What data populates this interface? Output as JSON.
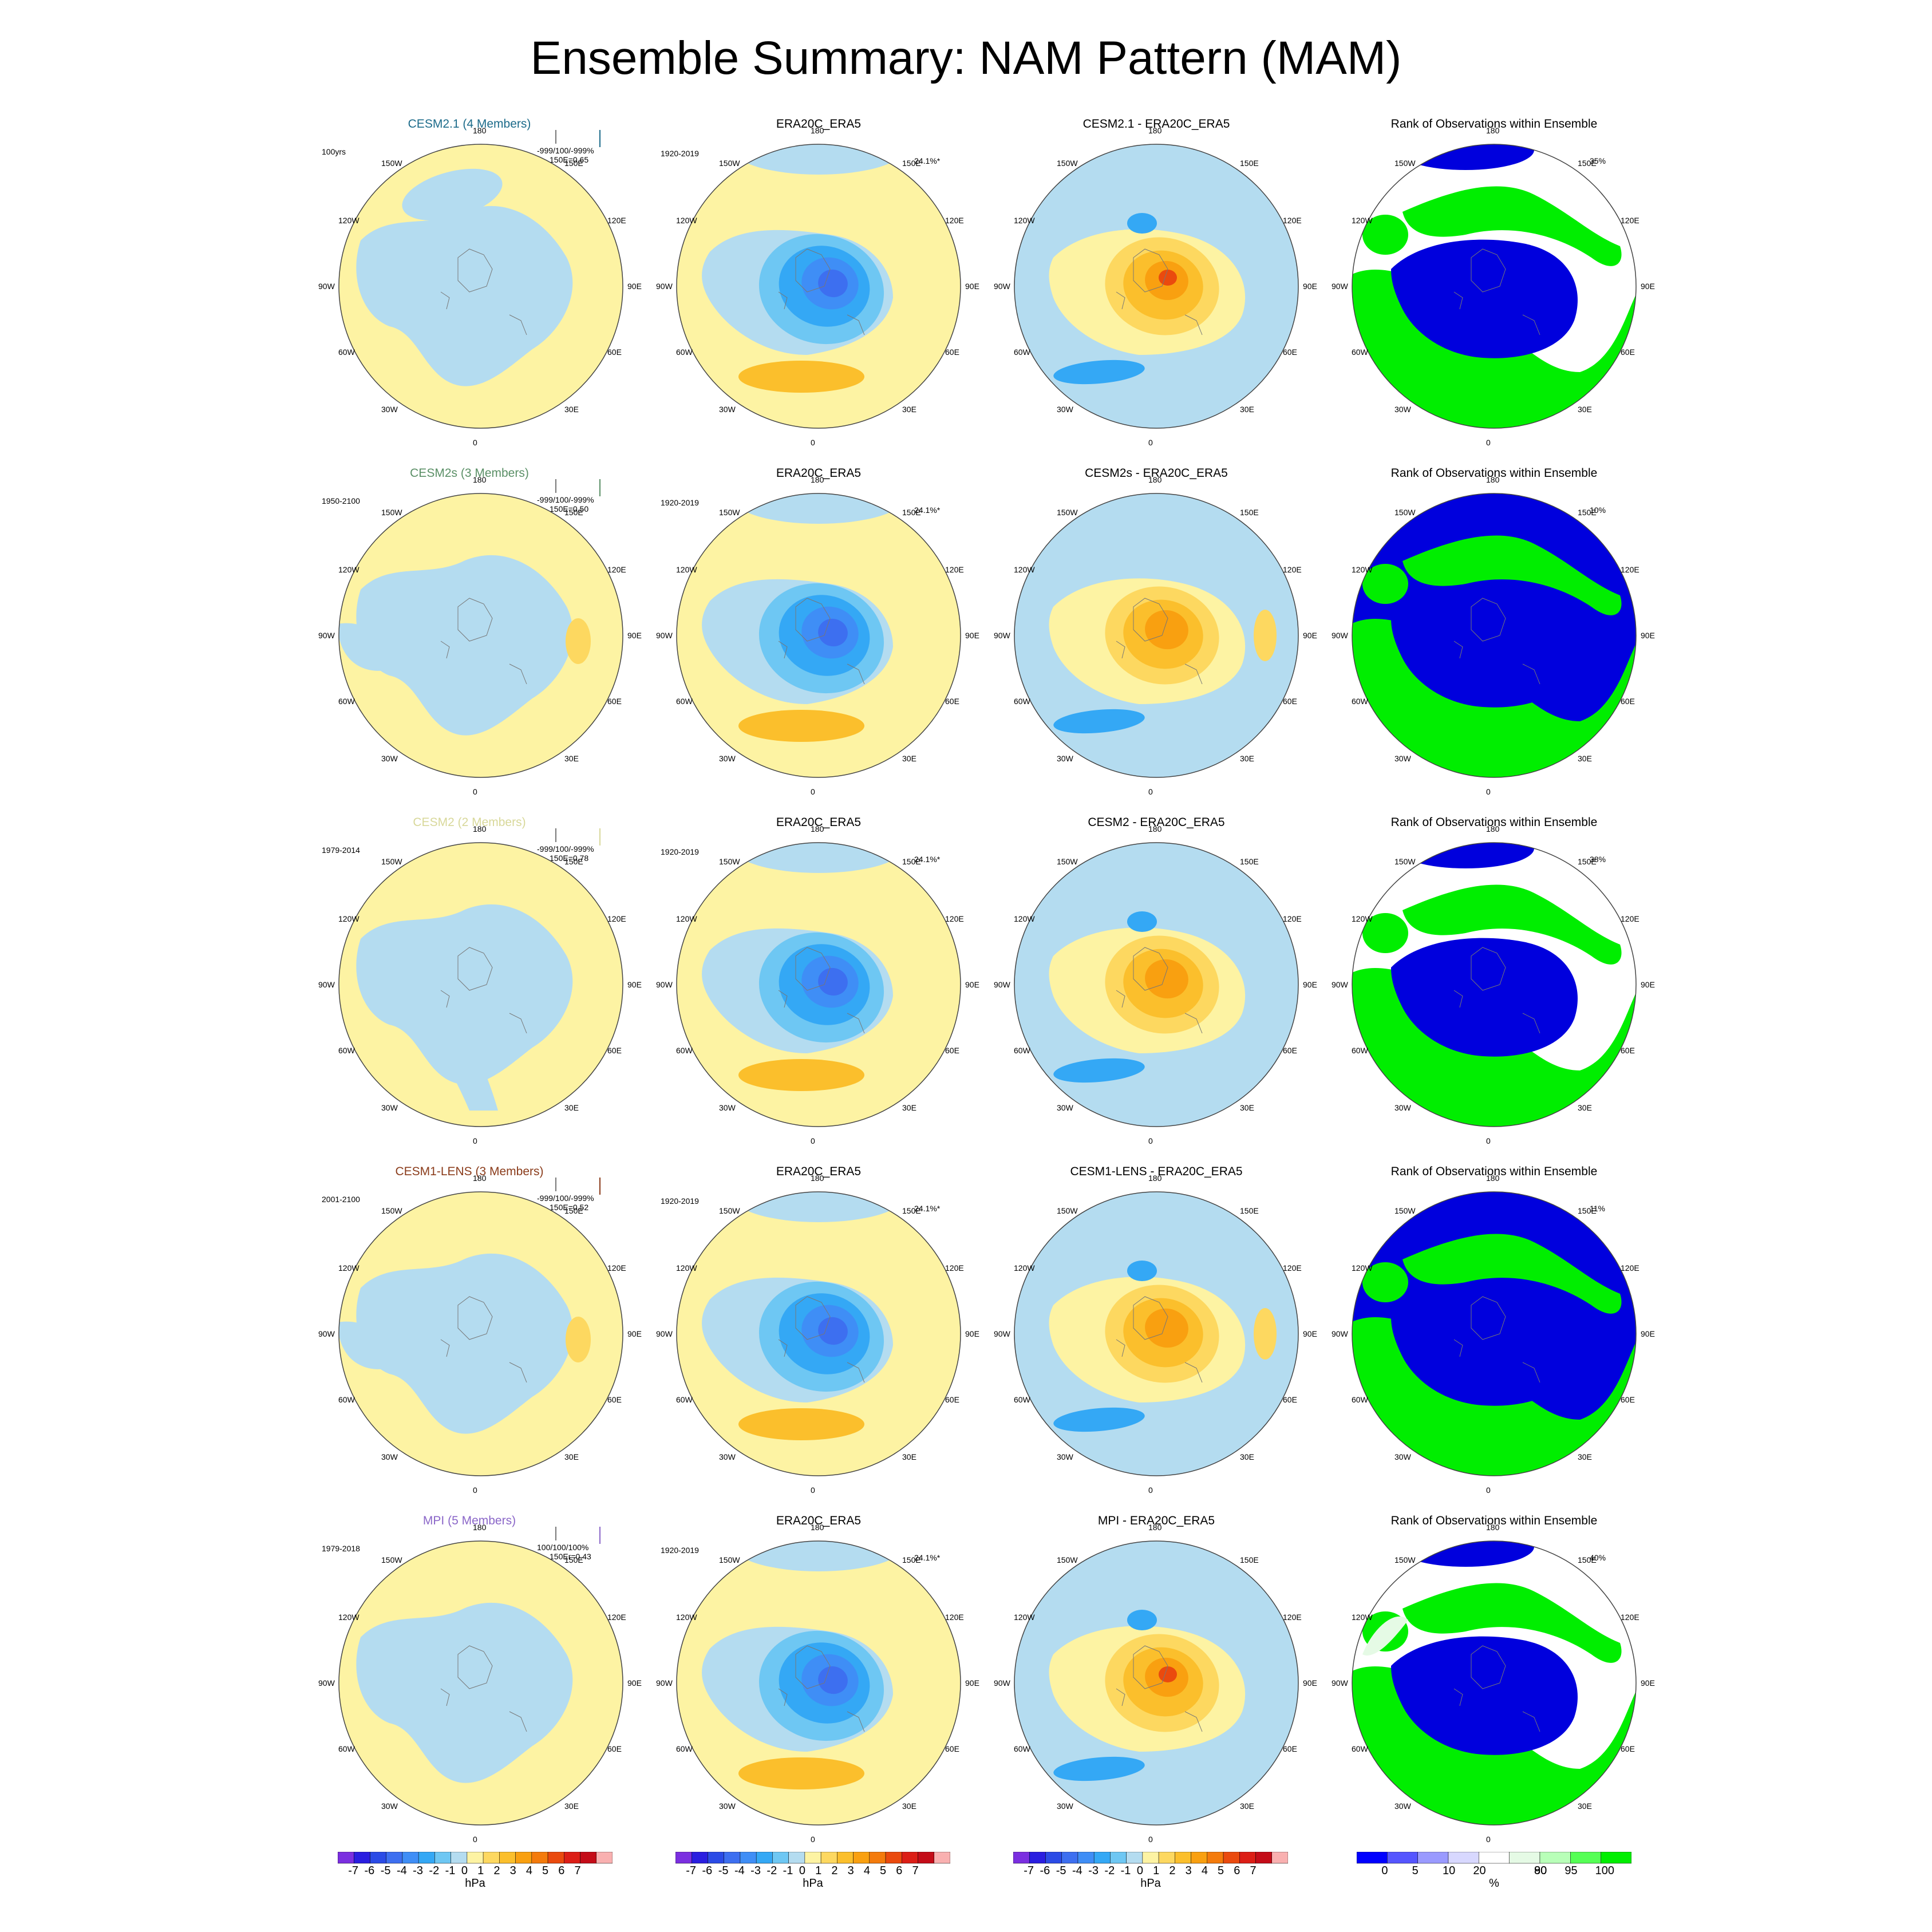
{
  "title": "Ensemble Summary: NAM Pattern (MAM)",
  "longitude_labels": [
    "180",
    "150E",
    "120E",
    "90E",
    "60E",
    "30E",
    "0",
    "30W",
    "60W",
    "90W",
    "120W",
    "150W"
  ],
  "observation_period": "1920-2019",
  "observation_title": "ERA20C_ERA5",
  "observation_variance": "24.1%*",
  "rank_title": "Rank of Observations within Ensemble",
  "rows": [
    {
      "model": "CESM2.1 (4 Members)",
      "model_color": "#1c6b8a",
      "period": "100yrs",
      "stats1": "-999/100/-999%",
      "stats2": "150E=0.65",
      "bar_color": "#1c6b8a",
      "diff_title": "CESM2.1 - ERA20C_ERA5",
      "rank_pct": "35%"
    },
    {
      "model": "CESM2s (3 Members)",
      "model_color": "#5a8f66",
      "period": "1950-2100",
      "stats1": "-999/100/-999%",
      "stats2": "150E=0.50",
      "bar_color": "#5a8f66",
      "diff_title": "CESM2s - ERA20C_ERA5",
      "rank_pct": "10%"
    },
    {
      "model": "CESM2 (2 Members)",
      "model_color": "#d8d89a",
      "period": "1979-2014",
      "stats1": "-999/100/-999%",
      "stats2": "150E=0.78",
      "bar_color": "#d8d89a",
      "diff_title": "CESM2 - ERA20C_ERA5",
      "rank_pct": "38%"
    },
    {
      "model": "CESM1-LENS (3 Members)",
      "model_color": "#8a3b1a",
      "period": "2001-2100",
      "stats1": "-999/100/-999%",
      "stats2": "150E=0.52",
      "bar_color": "#8a3b1a",
      "diff_title": "CESM1-LENS - ERA20C_ERA5",
      "rank_pct": "11%"
    },
    {
      "model": "MPI (5 Members)",
      "model_color": "#8a66c8",
      "period": "1979-2018",
      "stats1": "100/100/100%",
      "stats2": "150Er=0.43",
      "bar_color": "#8a66c8",
      "diff_title": "MPI - ERA20C_ERA5",
      "rank_pct": "40%"
    }
  ],
  "colorbar_hpa": {
    "labels": [
      "-7",
      "-6",
      "-5",
      "-4",
      "-3",
      "-2",
      "-1",
      "0",
      "1",
      "2",
      "3",
      "4",
      "5",
      "6",
      "7"
    ],
    "colors": [
      "#7b2fe0",
      "#2a1ee0",
      "#2b4be6",
      "#3d6ff0",
      "#3f8ef6",
      "#34a8f5",
      "#6ec7f3",
      "#b4dcf0",
      "#fdf3a3",
      "#fdd860",
      "#fbbf2c",
      "#f9a010",
      "#f47b0c",
      "#ea4a0e",
      "#dc1e16",
      "#c40c18",
      "#f9b0b0"
    ],
    "unit": "hPa"
  },
  "colorbar_rank": {
    "labels": [
      "0",
      "5",
      "10",
      "20",
      "80",
      "90",
      "95",
      "100"
    ],
    "colors": [
      "#0000ff",
      "#5555ff",
      "#9a9aff",
      "#d8d8ff",
      "#ffffff",
      "#e5fae5",
      "#b8ffb8",
      "#55ff55",
      "#00ee00"
    ],
    "unit": "%"
  },
  "map_colors": {
    "pale_yellow": "#fdf3a3",
    "light_blue": "#b4dcf0",
    "rank_blue": "#0000dd",
    "rank_green": "#00ee00"
  }
}
